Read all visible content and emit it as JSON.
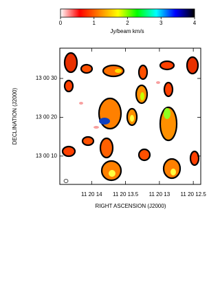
{
  "chart_data": {
    "type": "contour",
    "colorbar": {
      "label": "Jy/beam km/s",
      "lim": [
        0,
        4
      ],
      "ticks": [
        0,
        1,
        2,
        3,
        4
      ],
      "colormap": [
        "#ffffff",
        "#ff0000",
        "#ff8000",
        "#ffff00",
        "#00ff00",
        "#00ffff",
        "#0000ff",
        "#000000"
      ]
    },
    "xlabel": "RIGHT ASCENSION (J2000)",
    "ylabel": "DECLINATION (J2000)",
    "xlim": [
      14.47,
      12.39
    ],
    "xticks": [
      {
        "value": 14,
        "label": "11 20 14"
      },
      {
        "value": 13.5,
        "label": "11 20 13.5"
      },
      {
        "value": 13,
        "label": "11 20 13"
      },
      {
        "value": 12.5,
        "label": "11 20 12.5"
      }
    ],
    "ylim": [
      2.7,
      37.8
    ],
    "yticks": [
      {
        "value": 30,
        "label": "13 00 30"
      },
      {
        "value": 20,
        "label": "13 00 20"
      },
      {
        "value": 10,
        "label": "13 00 10"
      }
    ]
  }
}
